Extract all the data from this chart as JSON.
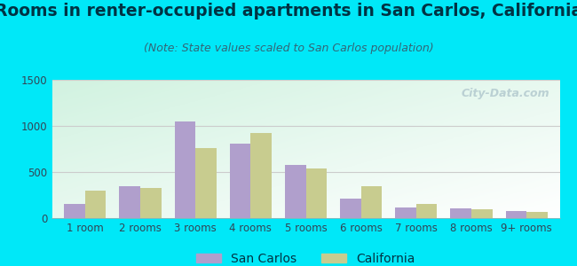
{
  "title": "Rooms in renter-occupied apartments in San Carlos, California",
  "subtitle": "(Note: State values scaled to San Carlos population)",
  "categories": [
    "1 room",
    "2 rooms",
    "3 rooms",
    "4 rooms",
    "5 rooms",
    "6 rooms",
    "7 rooms",
    "8 rooms",
    "9+ rooms"
  ],
  "san_carlos": [
    150,
    350,
    1050,
    810,
    575,
    215,
    120,
    105,
    80
  ],
  "california": [
    295,
    330,
    755,
    920,
    535,
    345,
    155,
    95,
    65
  ],
  "san_carlos_color": "#b09fcc",
  "california_color": "#c8cc8f",
  "bg_outer": "#00e8f8",
  "ylim": [
    0,
    1500
  ],
  "yticks": [
    0,
    500,
    1000,
    1500
  ],
  "title_fontsize": 13.5,
  "subtitle_fontsize": 9,
  "tick_fontsize": 8.5,
  "legend_fontsize": 10,
  "bar_width": 0.38,
  "watermark": "City-Data.com",
  "title_color": "#003344",
  "subtitle_color": "#336677",
  "tick_color": "#334455"
}
